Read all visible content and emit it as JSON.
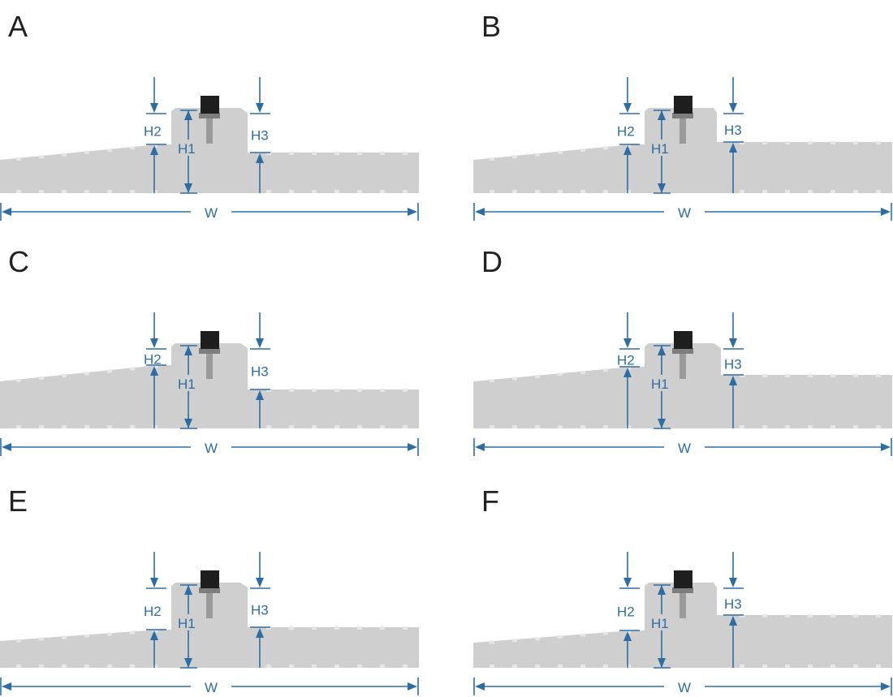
{
  "panels": [
    {
      "label": "A",
      "h1": "H1",
      "h2": "H2",
      "h3": "H3",
      "w": "W"
    },
    {
      "label": "B",
      "h1": "H1",
      "h2": "H2",
      "h3": "H3",
      "w": "W"
    },
    {
      "label": "C",
      "h1": "H1",
      "h2": "H2",
      "h3": "H3",
      "w": "W"
    },
    {
      "label": "D",
      "h1": "H1",
      "h2": "H2",
      "h3": "H3",
      "w": "W"
    },
    {
      "label": "E",
      "h1": "H1",
      "h2": "H2",
      "h3": "H3",
      "w": "W"
    },
    {
      "label": "F",
      "h1": "H1",
      "h2": "H2",
      "h3": "H3",
      "w": "W"
    }
  ]
}
